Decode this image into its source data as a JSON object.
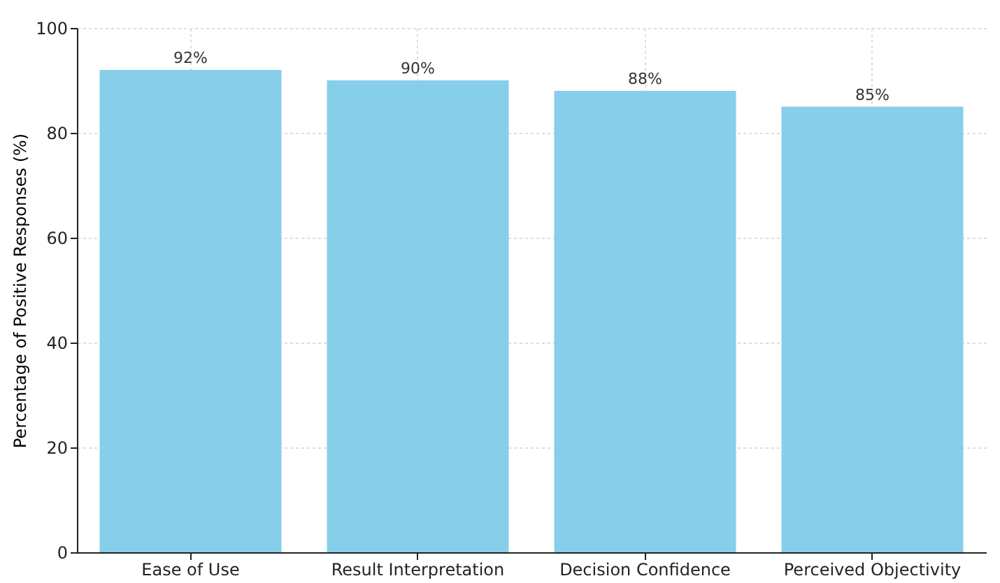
{
  "chart_data": {
    "type": "bar",
    "ylabel": "Percentage of Positive Responses (%)",
    "categories": [
      "Ease of Use",
      "Result Interpretation",
      "Decision Confidence",
      "Perceived Objectivity"
    ],
    "values": [
      92,
      90,
      88,
      85
    ],
    "value_labels": [
      "92%",
      "90%",
      "88%",
      "85%"
    ],
    "color": "#87ceeb",
    "ylim": [
      0,
      100
    ],
    "yticks": [
      0,
      20,
      40,
      60,
      80,
      100
    ],
    "grid": true
  }
}
